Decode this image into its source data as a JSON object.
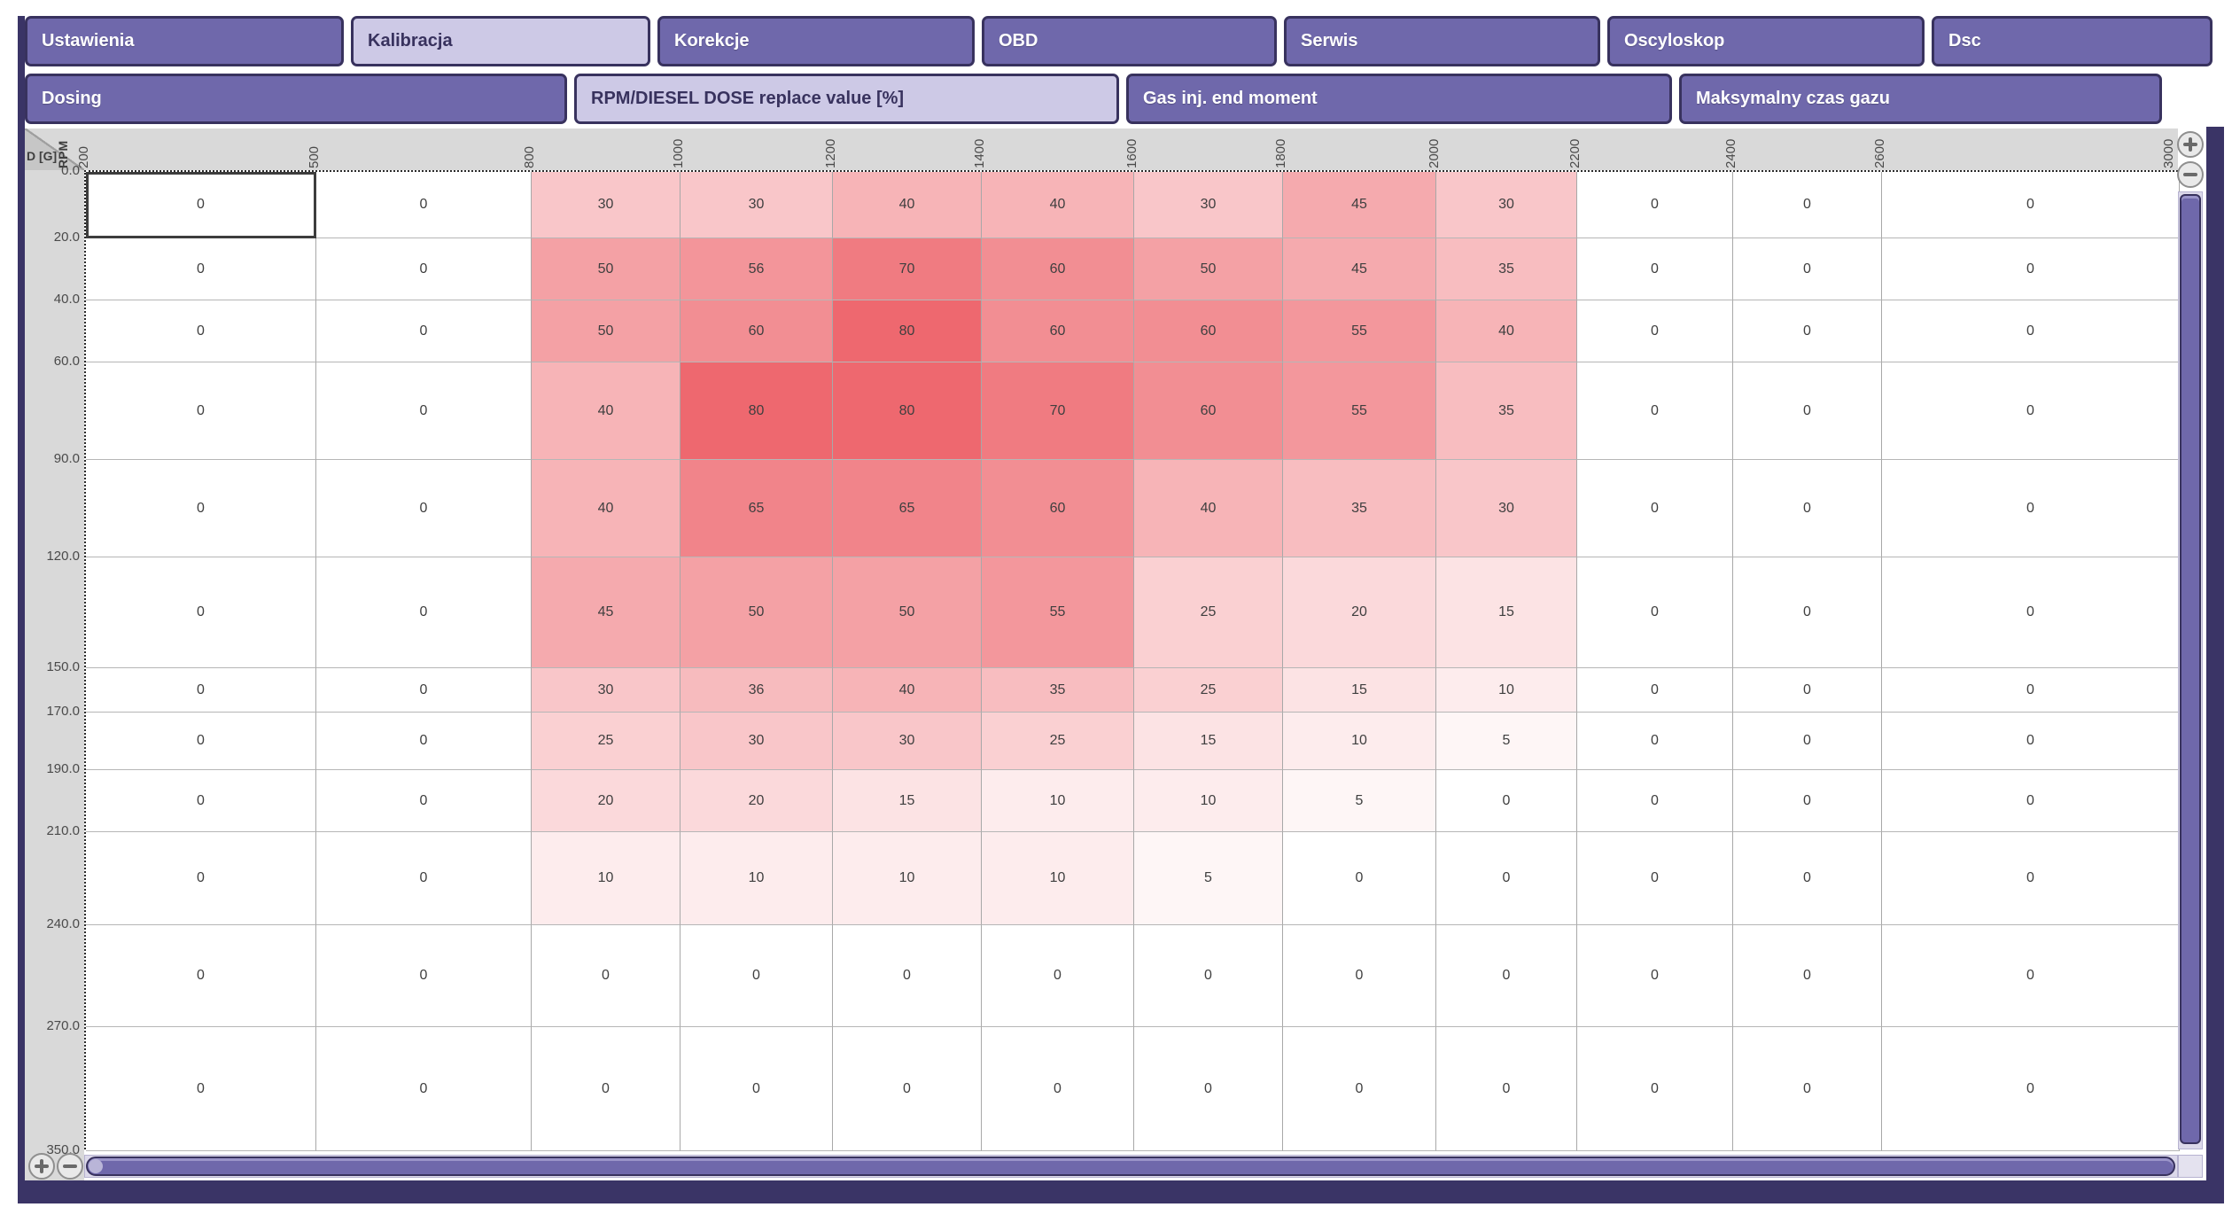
{
  "window": {
    "accent": "#6f68ab",
    "accent_dark": "#38325e",
    "active_tab_bg": "#cdc9e6",
    "axis_band_bg": "#d9d9d9"
  },
  "tabs_row1": [
    {
      "label": "Ustawienia",
      "active": false
    },
    {
      "label": "Kalibracja",
      "active": true
    },
    {
      "label": "Korekcje",
      "active": false
    },
    {
      "label": "OBD",
      "active": false
    },
    {
      "label": "Serwis",
      "active": false
    },
    {
      "label": "Oscyloskop",
      "active": false
    },
    {
      "label": "Dsc",
      "active": false
    }
  ],
  "tabs_row2": [
    {
      "label": "Dosing",
      "active": false
    },
    {
      "label": "RPM/DIESEL DOSE replace value [%]",
      "active": true
    },
    {
      "label": "Gas inj. end moment",
      "active": false
    },
    {
      "label": "Maksymalny czas gazu",
      "active": false
    }
  ],
  "controls": {
    "zoom_in_icon": "magnifier-plus",
    "zoom_out_icon": "magnifier-minus"
  },
  "chart_data": {
    "type": "heatmap",
    "title": "RPM/DIESEL DOSE replace value [%]",
    "x_axis_label": "RPM",
    "y_axis_label": "D [G]",
    "x_boundaries": [
      "200",
      "500",
      "800",
      "1000",
      "1200",
      "1400",
      "1600",
      "1800",
      "2000",
      "2200",
      "2400",
      "2600",
      "3000"
    ],
    "y_boundaries": [
      "0.0",
      "20.0",
      "40.0",
      "60.0",
      "90.0",
      "120.0",
      "150.0",
      "170.0",
      "190.0",
      "210.0",
      "240.0",
      "270.0",
      "350.0"
    ],
    "values": [
      [
        0,
        0,
        30,
        30,
        40,
        40,
        30,
        45,
        30,
        0,
        0,
        0
      ],
      [
        0,
        0,
        50,
        56,
        70,
        60,
        50,
        45,
        35,
        0,
        0,
        0
      ],
      [
        0,
        0,
        50,
        60,
        80,
        60,
        60,
        55,
        40,
        0,
        0,
        0
      ],
      [
        0,
        0,
        40,
        80,
        80,
        70,
        60,
        55,
        35,
        0,
        0,
        0
      ],
      [
        0,
        0,
        40,
        65,
        65,
        60,
        40,
        35,
        30,
        0,
        0,
        0
      ],
      [
        0,
        0,
        45,
        50,
        50,
        55,
        25,
        20,
        15,
        0,
        0,
        0
      ],
      [
        0,
        0,
        30,
        36,
        40,
        35,
        25,
        15,
        10,
        0,
        0,
        0
      ],
      [
        0,
        0,
        25,
        30,
        30,
        25,
        15,
        10,
        5,
        0,
        0,
        0
      ],
      [
        0,
        0,
        20,
        20,
        15,
        10,
        10,
        5,
        0,
        0,
        0,
        0
      ],
      [
        0,
        0,
        10,
        10,
        10,
        10,
        5,
        0,
        0,
        0,
        0,
        0
      ],
      [
        0,
        0,
        0,
        0,
        0,
        0,
        0,
        0,
        0,
        0,
        0,
        0
      ],
      [
        0,
        0,
        0,
        0,
        0,
        0,
        0,
        0,
        0,
        0,
        0,
        0
      ]
    ],
    "value_range": [
      0,
      80
    ],
    "zero_color": "#ffffff",
    "max_color": "#ee686f",
    "selected_cell": {
      "row": 0,
      "col": 0
    },
    "legend": "cell color saturates from white (0) to red (80)"
  }
}
